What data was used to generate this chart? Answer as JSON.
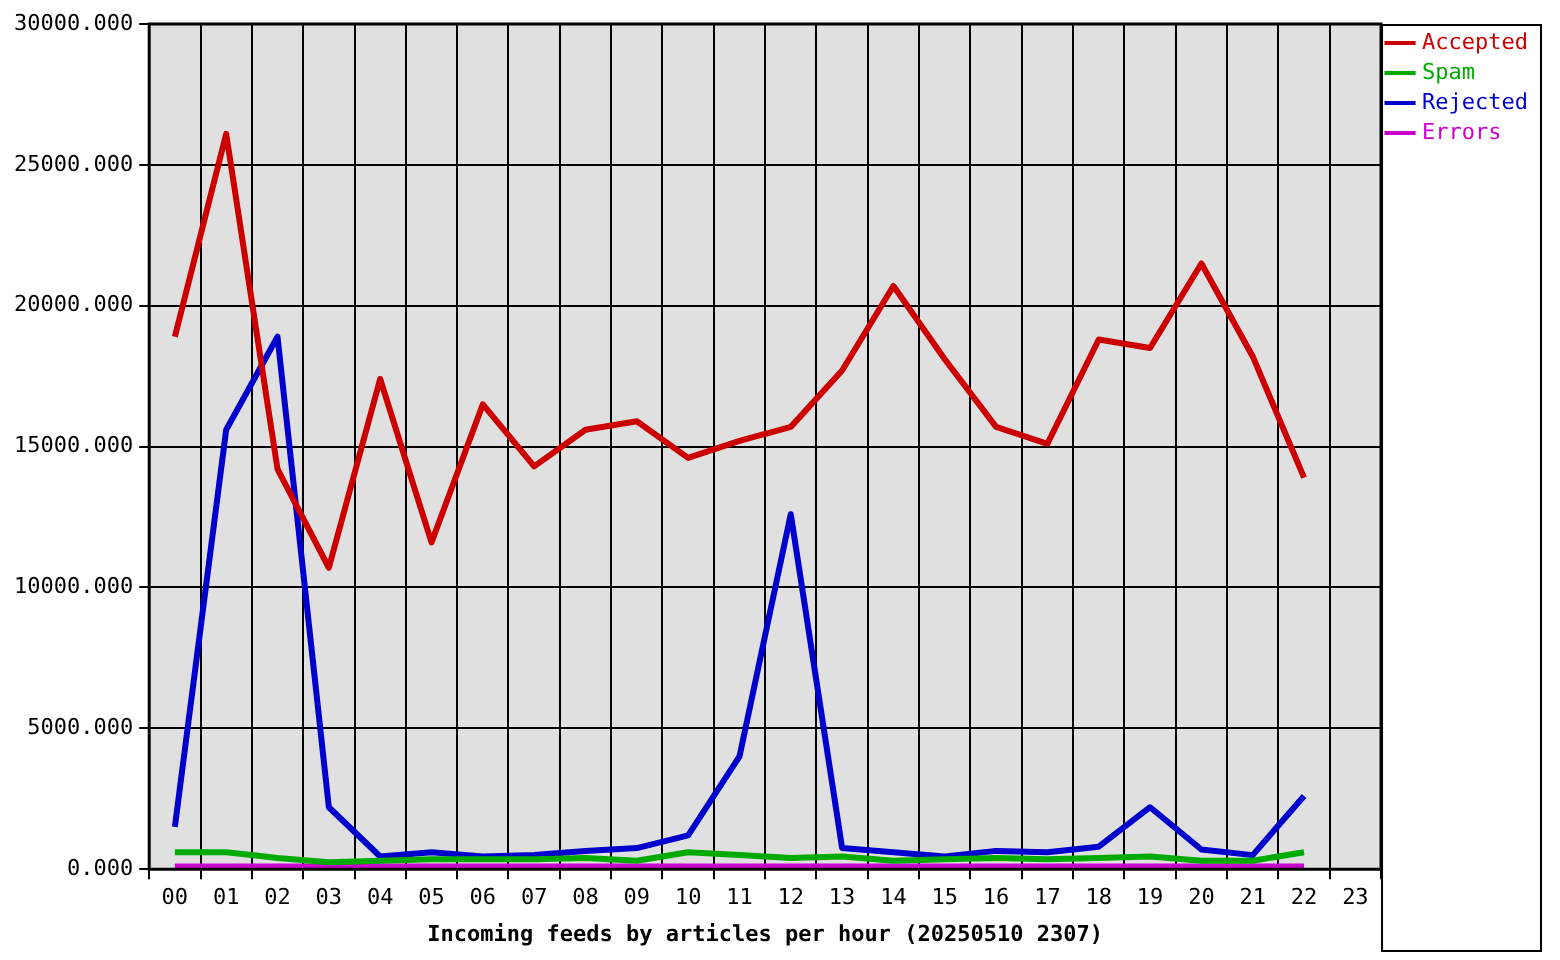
{
  "chart_data": {
    "type": "line",
    "xlabel": "Incoming feeds by articles per hour (20250510 2307)",
    "categories": [
      "00",
      "01",
      "02",
      "03",
      "04",
      "05",
      "06",
      "07",
      "08",
      "09",
      "10",
      "11",
      "12",
      "13",
      "14",
      "15",
      "16",
      "17",
      "18",
      "19",
      "20",
      "21",
      "22",
      "23"
    ],
    "series": [
      {
        "name": "Accepted",
        "color": "#cc0000",
        "values": [
          18900,
          26100,
          14200,
          10700,
          17400,
          11600,
          16500,
          14300,
          15600,
          15900,
          14600,
          15200,
          15700,
          17700,
          20700,
          18100,
          15700,
          15100,
          18800,
          18500,
          21500,
          18200,
          13900,
          null
        ]
      },
      {
        "name": "Spam",
        "color": "#00aa00",
        "values": [
          600,
          600,
          400,
          250,
          300,
          350,
          350,
          350,
          400,
          300,
          600,
          500,
          400,
          450,
          300,
          350,
          400,
          350,
          400,
          450,
          300,
          300,
          600,
          null
        ]
      },
      {
        "name": "Rejected",
        "color": "#0000cc",
        "values": [
          1500,
          15600,
          18900,
          2200,
          450,
          600,
          450,
          500,
          650,
          750,
          1200,
          4000,
          12600,
          750,
          600,
          450,
          650,
          600,
          800,
          2200,
          700,
          500,
          2600,
          null
        ]
      },
      {
        "name": "Errors",
        "color": "#cc00cc",
        "values": [
          100,
          100,
          100,
          100,
          100,
          100,
          100,
          100,
          100,
          100,
          100,
          100,
          100,
          100,
          100,
          100,
          100,
          100,
          100,
          100,
          100,
          100,
          100,
          null
        ]
      }
    ],
    "ylim": [
      0,
      30000
    ],
    "yticks": [
      {
        "value": 0,
        "label": "0.000"
      },
      {
        "value": 5000,
        "label": "5000.000"
      },
      {
        "value": 10000,
        "label": "10000.000"
      },
      {
        "value": 15000,
        "label": "15000.000"
      },
      {
        "value": 20000,
        "label": "20000.000"
      },
      {
        "value": 25000,
        "label": "25000.000"
      },
      {
        "value": 30000,
        "label": "30000.000"
      }
    ],
    "grid": true,
    "legend": "top right",
    "marker": "none",
    "line_style": "solid"
  }
}
